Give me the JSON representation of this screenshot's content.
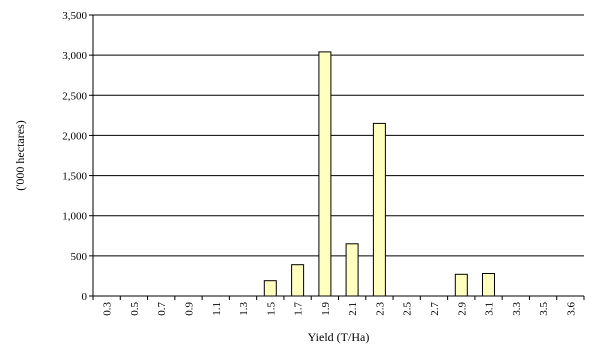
{
  "chart_data": {
    "type": "bar",
    "title": "",
    "xlabel": "Yield (T/Ha)",
    "ylabel": "('000 hectares)",
    "ylim": [
      0,
      3500
    ],
    "yticks": [
      "0",
      "500",
      "1,000",
      "1,500",
      "2,000",
      "2,500",
      "3,000",
      "3,500"
    ],
    "ytick_values": [
      0,
      500,
      1000,
      1500,
      2000,
      2500,
      3000,
      3500
    ],
    "grid": "horizontal",
    "legend": "none",
    "categories": [
      "0.3",
      "0.5",
      "0.7",
      "0.9",
      "1.1",
      "1.3",
      "1.5",
      "1.7",
      "1.9",
      "2.1",
      "2.3",
      "2.5",
      "2.7",
      "2.9",
      "3.1",
      "3.3",
      "3.5",
      "3.6"
    ],
    "values": [
      0,
      0,
      0,
      0,
      0,
      0,
      190,
      390,
      3040,
      650,
      2150,
      0,
      0,
      270,
      280,
      0,
      0,
      0
    ],
    "colors": {
      "bar_fill": "#ffffc0",
      "bar_stroke": "#000000",
      "grid": "#000000",
      "axis": "#000000"
    }
  }
}
